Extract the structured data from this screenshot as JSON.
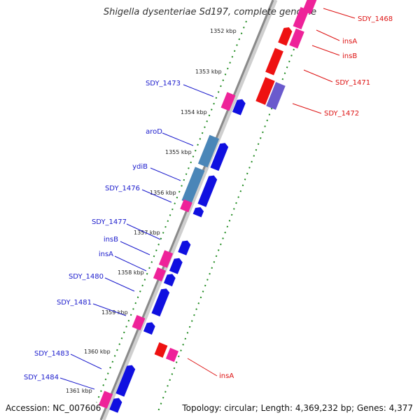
{
  "title": "Shigella dysenteriae Sd197, complete genome",
  "footer": {
    "accession": "Accession: NC_007606",
    "summary": "Topology: circular; Length: 4,369,232 bp; Genes: 4,377"
  },
  "colors": {
    "backbone": "#8a8a8a",
    "tick": "#1f8a1f",
    "forward_label": "#1a1acc",
    "reverse_label": "#dd1111",
    "gene_blue": "#1010e0",
    "gene_pink": "#ee2299",
    "gene_red": "#ee1111",
    "gene_steel": "#4a86b8",
    "gene_slate": "#6a5acd"
  },
  "scale": {
    "unit": "kbp",
    "ticks": [
      "1352 kbp",
      "1353 kbp",
      "1354 kbp",
      "1355 kbp",
      "1356 kbp",
      "1357 kbp",
      "1358 kbp",
      "1359 kbp",
      "1360 kbp",
      "1361 kbp"
    ]
  },
  "gene_labels": {
    "forward": [
      "SDY_1473",
      "aroD",
      "ydiB",
      "SDY_1476",
      "SDY_1477",
      "insB",
      "insA",
      "SDY_1480",
      "SDY_1481",
      "SDY_1483",
      "SDY_1484"
    ],
    "reverse": [
      "SDY_1468",
      "insA",
      "insB",
      "SDY_1471",
      "SDY_1472",
      "insA"
    ]
  }
}
